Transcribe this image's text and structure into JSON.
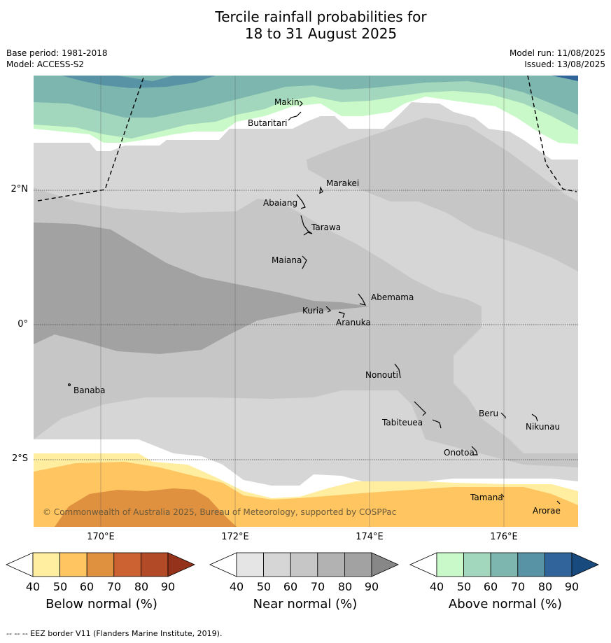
{
  "title": {
    "line1": "Tercile rainfall probabilities for",
    "line2": "18 to 31 August 2025"
  },
  "meta": {
    "base_period": "Base period: 1981-2018",
    "model": "Model: ACCESS-S2",
    "model_run": "Model run: 11/08/2025",
    "issued": "Issued: 13/08/2025"
  },
  "axes": {
    "y_labels": [
      "2°N",
      "0°",
      "2°S"
    ],
    "x_labels": [
      "170°E",
      "172°E",
      "174°E",
      "176°E"
    ]
  },
  "islands": [
    "Makin",
    "Butaritari",
    "Marakei",
    "Abaiang",
    "Tarawa",
    "Maiana",
    "Abemama",
    "Kuria",
    "Aranuka",
    "Nonouti",
    "Banaba",
    "Tabiteuea",
    "Beru",
    "Nikunau",
    "Onotoa",
    "Tamana",
    "Arorae"
  ],
  "copyright": "© Commonwealth of Australia 2025, Bureau of Meteorology, supported by COSPPac",
  "colorbars": [
    {
      "title": "Below normal (%)",
      "ticks": [
        "40",
        "50",
        "60",
        "70",
        "80",
        "90"
      ],
      "colors": [
        "#ffffff",
        "#ffeda0",
        "#fec561",
        "#e0913f",
        "#cc6232",
        "#b24a27",
        "#94321b"
      ]
    },
    {
      "title": "Near normal (%)",
      "ticks": [
        "40",
        "50",
        "60",
        "70",
        "80",
        "90"
      ],
      "colors": [
        "#ffffff",
        "#e5e5e5",
        "#d6d6d6",
        "#c6c6c6",
        "#b2b2b2",
        "#a2a2a2",
        "#878787"
      ]
    },
    {
      "title": "Above normal (%)",
      "ticks": [
        "40",
        "50",
        "60",
        "70",
        "80",
        "90"
      ],
      "colors": [
        "#ffffff",
        "#c9f9c8",
        "#a2d6bd",
        "#7cb6ae",
        "#5893a5",
        "#30649a",
        "#184a7e"
      ]
    }
  ],
  "footnote": "--  --  -- EEZ border V11 (Flanders Marine Institute, 2019)."
}
